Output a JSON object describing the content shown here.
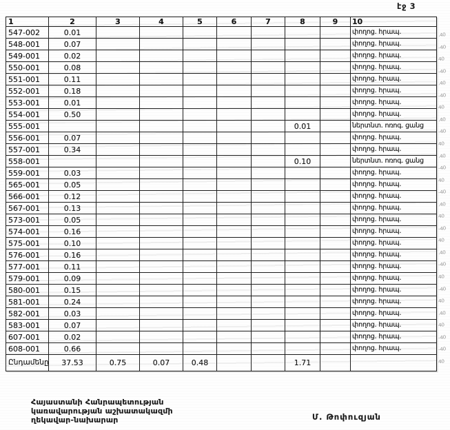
{
  "page": {
    "page_label": "էջ 3"
  },
  "table": {
    "column_headers": [
      "1",
      "2",
      "3",
      "4",
      "5",
      "6",
      "7",
      "8",
      "9",
      "10"
    ],
    "rows": [
      [
        "547-002",
        "0.01",
        "",
        "",
        "",
        "",
        "",
        "",
        "",
        "փողոց. հրապ."
      ],
      [
        "548-001",
        "0.07",
        "",
        "",
        "",
        "",
        "",
        "",
        "",
        "փողոց. հրապ."
      ],
      [
        "549-001",
        "0.02",
        "",
        "",
        "",
        "",
        "",
        "",
        "",
        "փողոց. հրապ."
      ],
      [
        "550-001",
        "0.08",
        "",
        "",
        "",
        "",
        "",
        "",
        "",
        "փողոց. հրապ."
      ],
      [
        "551-001",
        "0.11",
        "",
        "",
        "",
        "",
        "",
        "",
        "",
        "փողոց. հրապ."
      ],
      [
        "552-001",
        "0.18",
        "",
        "",
        "",
        "",
        "",
        "",
        "",
        "փողոց. հրապ."
      ],
      [
        "553-001",
        "0.01",
        "",
        "",
        "",
        "",
        "",
        "",
        "",
        "փողոց. հրապ."
      ],
      [
        "554-001",
        "0.50",
        "",
        "",
        "",
        "",
        "",
        "",
        "",
        "փողոց. հրապ."
      ],
      [
        "555-001",
        "",
        "",
        "",
        "",
        "",
        "",
        "0.01",
        "",
        "ներտնտ. ոռոգ. ցանց"
      ],
      [
        "556-001",
        "0.07",
        "",
        "",
        "",
        "",
        "",
        "",
        "",
        "փողոց. հրապ."
      ],
      [
        "557-001",
        "0.34",
        "",
        "",
        "",
        "",
        "",
        "",
        "",
        "փողոց. հրապ."
      ],
      [
        "558-001",
        "",
        "",
        "",
        "",
        "",
        "",
        "0.10",
        "",
        "ներտնտ. ոռոգ. ցանց"
      ],
      [
        "559-001",
        "0.03",
        "",
        "",
        "",
        "",
        "",
        "",
        "",
        "փողոց. հրապ."
      ],
      [
        "565-001",
        "0.05",
        "",
        "",
        "",
        "",
        "",
        "",
        "",
        "փողոց. հրապ."
      ],
      [
        "566-001",
        "0.12",
        "",
        "",
        "",
        "",
        "",
        "",
        "",
        "փողոց. հրապ."
      ],
      [
        "567-001",
        "0.13",
        "",
        "",
        "",
        "",
        "",
        "",
        "",
        "փողոց. հրապ."
      ],
      [
        "573-001",
        "0.05",
        "",
        "",
        "",
        "",
        "",
        "",
        "",
        "փողոց. հրապ."
      ],
      [
        "574-001",
        "0.16",
        "",
        "",
        "",
        "",
        "",
        "",
        "",
        "փողոց. հրապ."
      ],
      [
        "575-001",
        "0.10",
        "",
        "",
        "",
        "",
        "",
        "",
        "",
        "փողոց. հրապ."
      ],
      [
        "576-001",
        "0.16",
        "",
        "",
        "",
        "",
        "",
        "",
        "",
        "փողոց. հրապ."
      ],
      [
        "577-001",
        "0.11",
        "",
        "",
        "",
        "",
        "",
        "",
        "",
        "փողոց. հրապ."
      ],
      [
        "579-001",
        "0.09",
        "",
        "",
        "",
        "",
        "",
        "",
        "",
        "փողոց. հրապ."
      ],
      [
        "580-001",
        "0.15",
        "",
        "",
        "",
        "",
        "",
        "",
        "",
        "փողոց. հրապ."
      ],
      [
        "581-001",
        "0.24",
        "",
        "",
        "",
        "",
        "",
        "",
        "",
        "փողոց. հրապ."
      ],
      [
        "582-001",
        "0.03",
        "",
        "",
        "",
        "",
        "",
        "",
        "",
        "փողոց. հրապ."
      ],
      [
        "583-001",
        "0.07",
        "",
        "",
        "",
        "",
        "",
        "",
        "",
        "փողոց. հրապ."
      ],
      [
        "607-001",
        "0.02",
        "",
        "",
        "",
        "",
        "",
        "",
        "",
        "փողոց. հրապ."
      ],
      [
        "608-001",
        "0.66",
        "",
        "",
        "",
        "",
        "",
        "",
        "",
        "փողոց. հրապ."
      ]
    ],
    "total_row": [
      "Ընդամենը",
      "37.53",
      "0.75",
      "0.07",
      "0.48",
      "",
      "",
      "1.71",
      "",
      ""
    ]
  },
  "margin_marks": [
    ".40",
    "-40",
    "40",
    "-40",
    ".40",
    "-40",
    "40",
    ".40",
    "-40",
    "40",
    ".40",
    "-40",
    "40",
    "-40",
    ".40",
    "40",
    "-40",
    "40",
    ".40",
    "-40",
    "40",
    "-40",
    "40",
    ".40",
    "40",
    "-40",
    "-40",
    "40"
  ],
  "footer": {
    "line1": "Հայաստանի Հանրապետության",
    "line2": "կառավարության աշխատակազմի",
    "line3": "ղեկավար-նախարար",
    "signature": "Մ. Թոփուզյան"
  }
}
